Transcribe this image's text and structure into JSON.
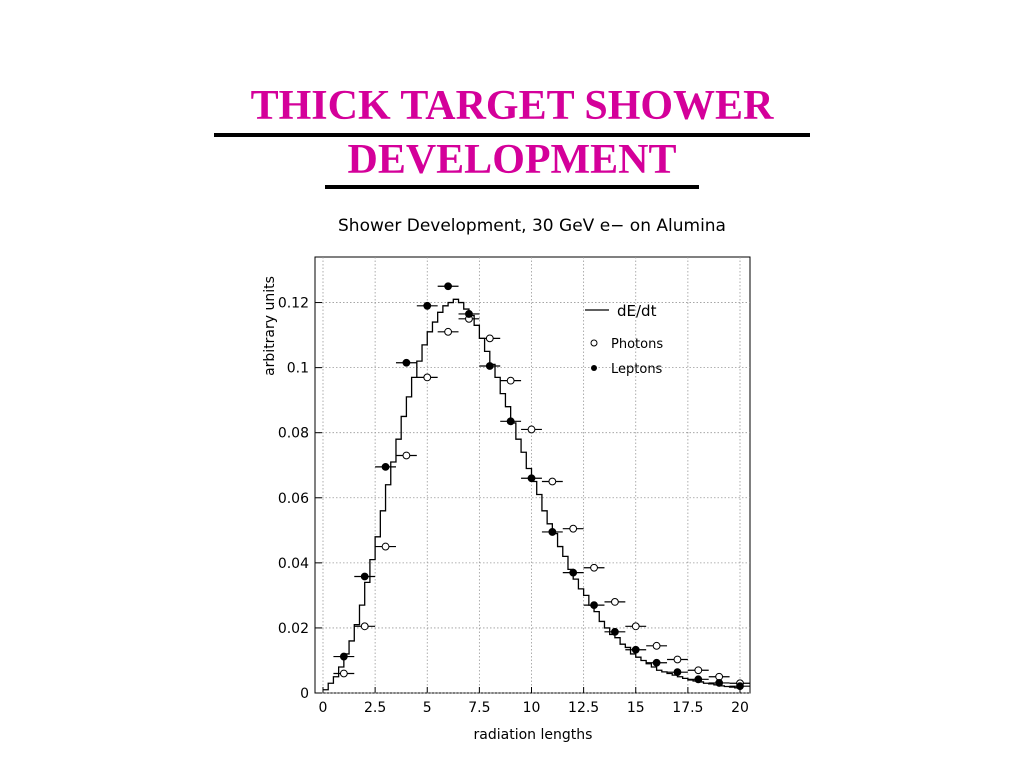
{
  "slide": {
    "title_line1": "THICK TARGET SHOWER",
    "title_line2": "DEVELOPMENT",
    "title_color": "#d4009a"
  },
  "chart_data": {
    "type": "scatter",
    "title": "Shower Development, 30 GeV e− on Alumina",
    "xlabel": "radiation lengths",
    "ylabel": "arbitrary units",
    "xlim": [
      0,
      20
    ],
    "ylim": [
      0,
      0.134
    ],
    "xticks": [
      "0",
      "2.5",
      "5",
      "7.5",
      "10",
      "12.5",
      "15",
      "17.5",
      "20"
    ],
    "yticks": [
      "0",
      "0.02",
      "0.04",
      "0.06",
      "0.08",
      "0.1",
      "0.12"
    ],
    "grid": true,
    "legend_position": "top-right",
    "series": [
      {
        "name": "dE/dt",
        "style": "step-line",
        "x": [
          0,
          0.25,
          0.5,
          0.75,
          1.0,
          1.25,
          1.5,
          1.75,
          2.0,
          2.25,
          2.5,
          2.75,
          3.0,
          3.25,
          3.5,
          3.75,
          4.0,
          4.25,
          4.5,
          4.75,
          5.0,
          5.25,
          5.5,
          5.75,
          6.0,
          6.25,
          6.5,
          6.75,
          7.0,
          7.25,
          7.5,
          7.75,
          8.0,
          8.25,
          8.5,
          8.75,
          9.0,
          9.25,
          9.5,
          9.75,
          10.0,
          10.25,
          10.5,
          10.75,
          11.0,
          11.25,
          11.5,
          11.75,
          12.0,
          12.25,
          12.5,
          12.75,
          13.0,
          13.25,
          13.5,
          13.75,
          14.0,
          14.25,
          14.5,
          14.75,
          15.0,
          15.25,
          15.5,
          15.75,
          16.0,
          16.25,
          16.5,
          16.75,
          17.0,
          17.25,
          17.5,
          17.75,
          18.0,
          18.25,
          18.5,
          18.75,
          19.0,
          19.25,
          19.5,
          19.75
        ],
        "y": [
          0.001,
          0.003,
          0.005,
          0.008,
          0.012,
          0.016,
          0.021,
          0.027,
          0.034,
          0.041,
          0.048,
          0.056,
          0.064,
          0.071,
          0.078,
          0.085,
          0.091,
          0.097,
          0.102,
          0.107,
          0.111,
          0.114,
          0.117,
          0.119,
          0.12,
          0.121,
          0.12,
          0.118,
          0.116,
          0.113,
          0.109,
          0.105,
          0.101,
          0.097,
          0.092,
          0.088,
          0.083,
          0.078,
          0.074,
          0.069,
          0.065,
          0.061,
          0.056,
          0.052,
          0.049,
          0.045,
          0.042,
          0.038,
          0.035,
          0.032,
          0.03,
          0.027,
          0.025,
          0.022,
          0.02,
          0.018,
          0.017,
          0.015,
          0.014,
          0.012,
          0.011,
          0.01,
          0.009,
          0.008,
          0.007,
          0.0065,
          0.006,
          0.0055,
          0.005,
          0.0045,
          0.004,
          0.0037,
          0.0034,
          0.003,
          0.0028,
          0.0025,
          0.0022,
          0.002,
          0.0018,
          0.0016
        ]
      },
      {
        "name": "Photons",
        "marker": "open-circle",
        "x": [
          1,
          2,
          3,
          4,
          5,
          6,
          7,
          8,
          9,
          10,
          11,
          12,
          13,
          14,
          15,
          16,
          17,
          18,
          19,
          20
        ],
        "y": [
          0.006,
          0.0205,
          0.045,
          0.073,
          0.097,
          0.111,
          0.115,
          0.109,
          0.096,
          0.081,
          0.065,
          0.0505,
          0.0385,
          0.028,
          0.0205,
          0.0145,
          0.0103,
          0.007,
          0.005,
          0.003
        ],
        "xerr": 0.5
      },
      {
        "name": "Leptons",
        "marker": "filled-circle",
        "x": [
          1,
          2,
          3,
          4,
          5,
          6,
          7,
          8,
          9,
          10,
          11,
          12,
          13,
          14,
          15,
          16,
          17,
          18,
          19,
          20
        ],
        "y": [
          0.0112,
          0.0358,
          0.0695,
          0.1015,
          0.119,
          0.125,
          0.1165,
          0.1005,
          0.0835,
          0.066,
          0.0495,
          0.037,
          0.027,
          0.0188,
          0.0133,
          0.0093,
          0.0064,
          0.0042,
          0.0031,
          0.0021
        ],
        "xerr": 0.5
      }
    ]
  }
}
